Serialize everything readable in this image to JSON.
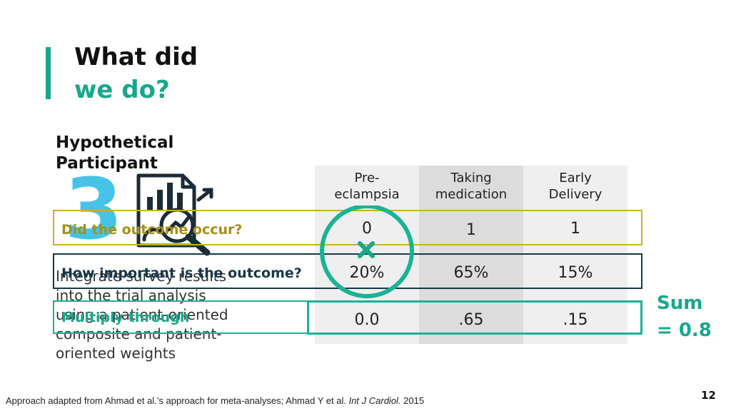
{
  "title": {
    "line1": "What did",
    "line2": "we do?"
  },
  "step": {
    "label": "Hypothetical Participant",
    "number": "3",
    "description": "Integrate survey results into the trial analysis using a patient-oriented composite and patient-oriented weights"
  },
  "table": {
    "columns": [
      "Pre-\neclampsia",
      "Taking\nmedication",
      "Early\nDelivery"
    ],
    "rows": [
      {
        "label": "Did the outcome occur?",
        "values": [
          "0",
          "1",
          "1"
        ]
      },
      {
        "label": "How important is the outcome?",
        "values": [
          "20%",
          "65%",
          "15%"
        ]
      },
      {
        "label": "Multiply through",
        "values": [
          "0.0",
          ".65",
          ".15"
        ]
      }
    ]
  },
  "sum": {
    "line1": "Sum",
    "line2": "= 0.8"
  },
  "footnote": {
    "prefix": "Approach adapted from Ahmad et al.’s approach for meta-analyses; Ahmad Y et al. ",
    "journal": "Int J Cardiol.",
    "year": " 2015"
  },
  "page_number": "12",
  "colors": {
    "accent": "#17a88c",
    "yellow_row": "#c9b31f",
    "navy_row": "#17374a",
    "teal_row": "#1ab394",
    "blue_number": "#34bde6",
    "column_light": "#efefef",
    "column_dark": "#dcdcdc"
  }
}
